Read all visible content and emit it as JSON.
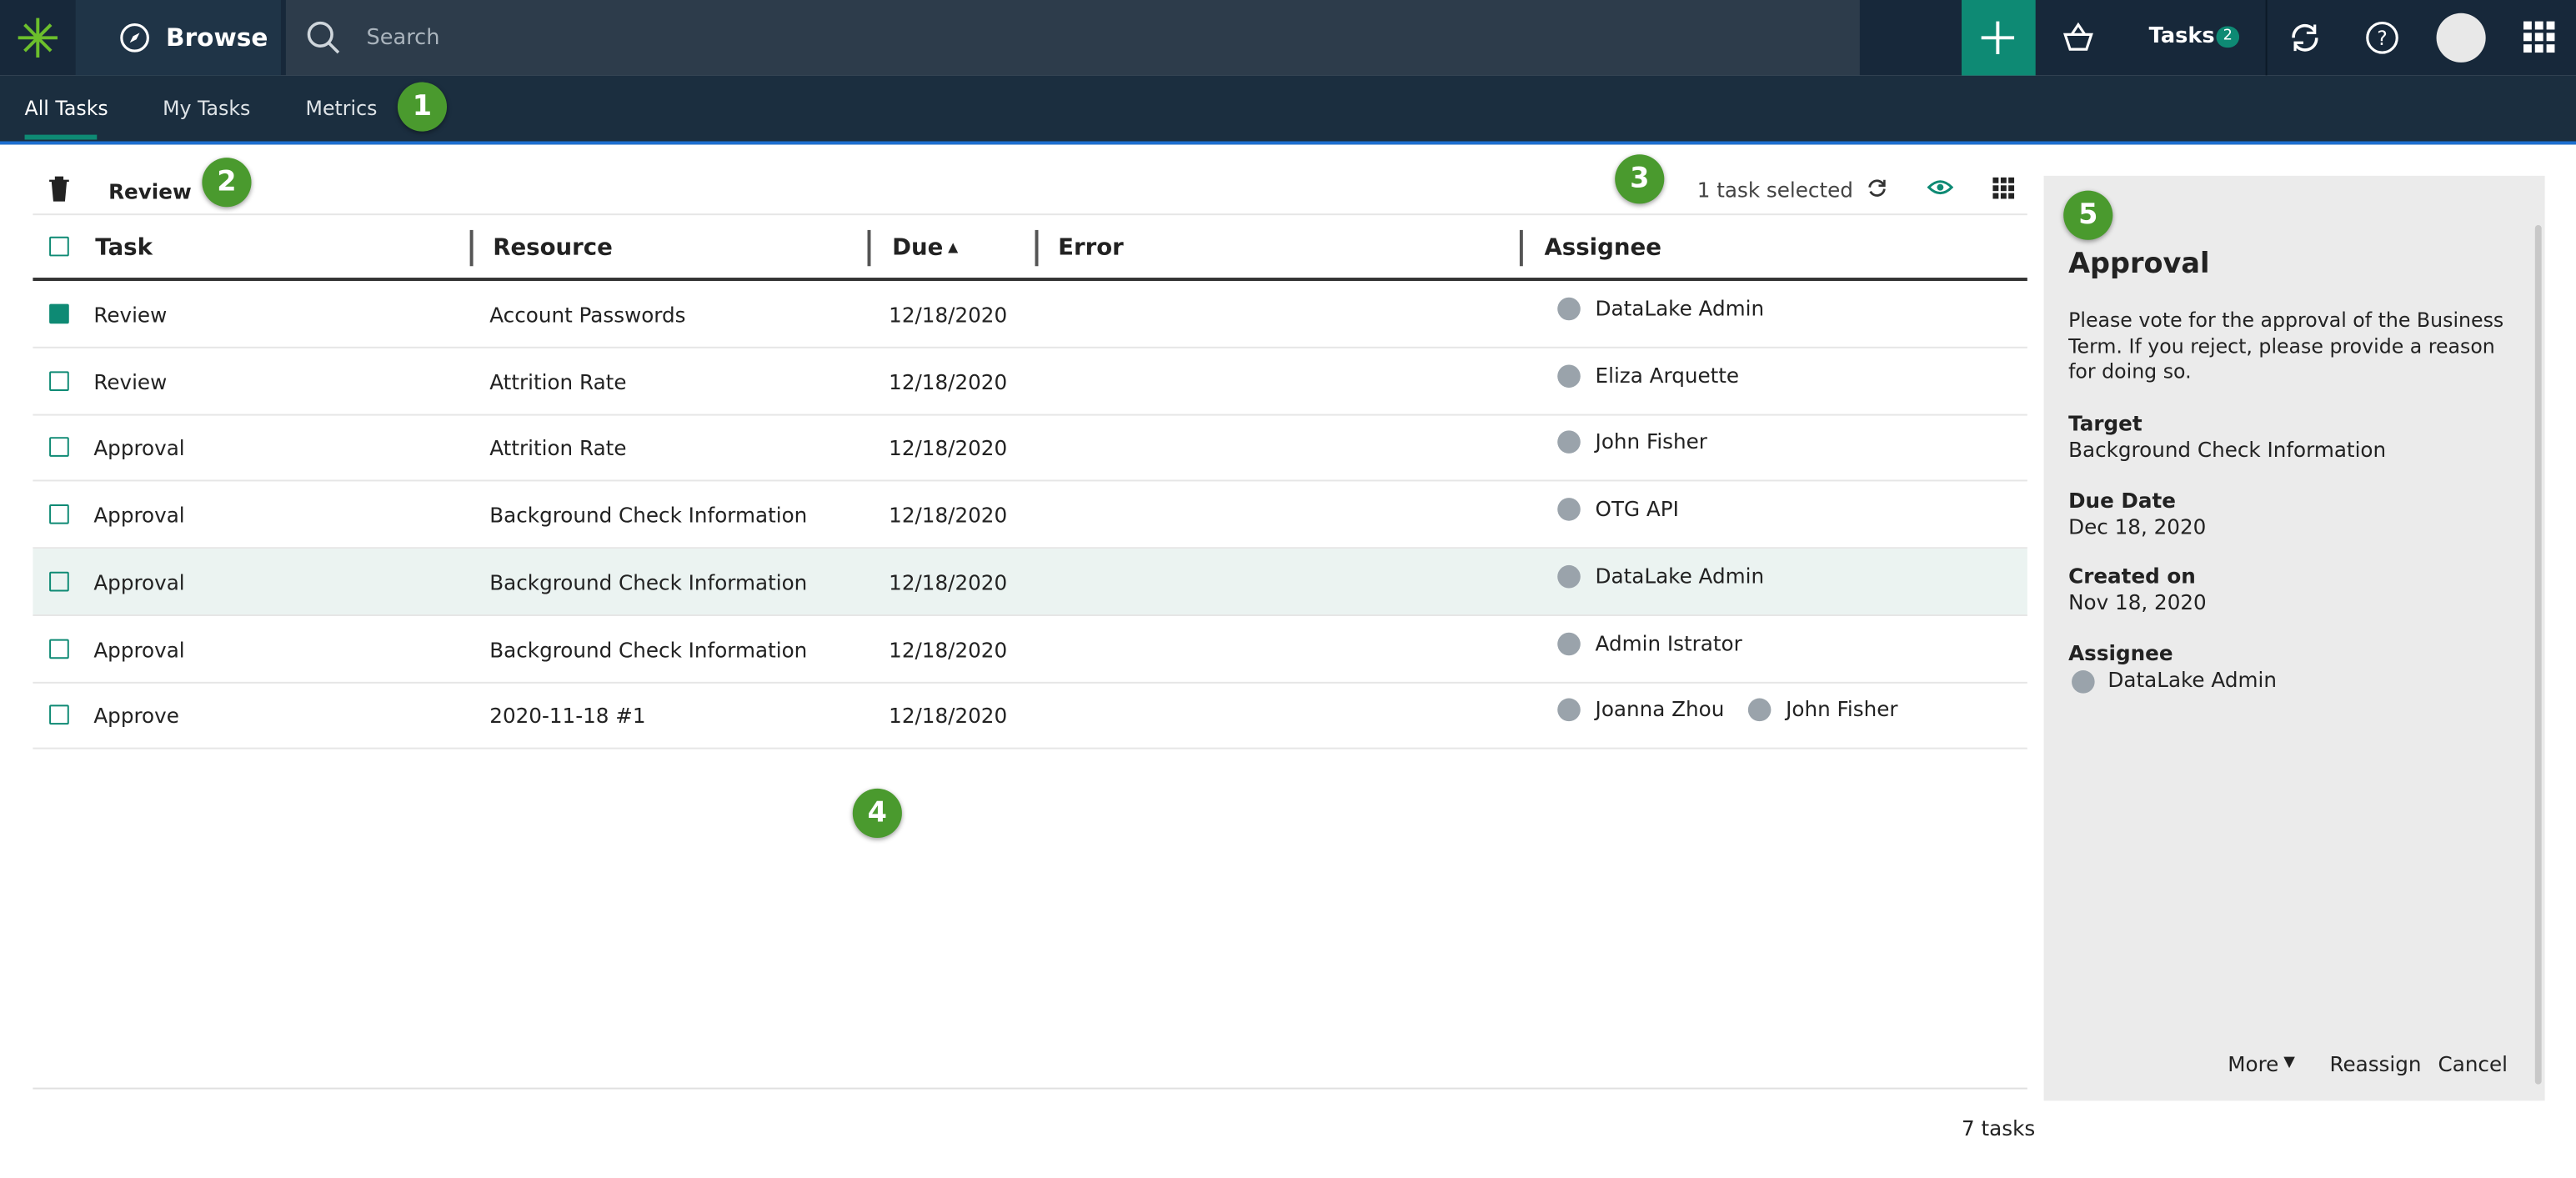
{
  "topbar": {
    "brand": "Browse",
    "search_placeholder": "Search",
    "tasks_label": "Tasks",
    "tasks_count": 2
  },
  "tabs": [
    "All Tasks",
    "My Tasks",
    "Metrics"
  ],
  "toolbar": {
    "title": "Review",
    "selection": "1 task selected"
  },
  "table": {
    "columns": [
      "Task",
      "Resource",
      "Due",
      "Error",
      "Assignee"
    ],
    "rows": [
      {
        "task": "Review",
        "resource": "Account Passwords",
        "due": "12/18/2020",
        "assignees": [
          "DataLake Admin"
        ],
        "checked": true
      },
      {
        "task": "Review",
        "resource": "Attrition Rate",
        "due": "12/18/2020",
        "assignees": [
          "Eliza Arquette"
        ]
      },
      {
        "task": "Approval",
        "resource": "Attrition Rate",
        "due": "12/18/2020",
        "assignees": [
          "John Fisher"
        ]
      },
      {
        "task": "Approval",
        "resource": "Background Check Information",
        "due": "12/18/2020",
        "assignees": [
          "OTG API"
        ]
      },
      {
        "task": "Approval",
        "resource": "Background Check Information",
        "due": "12/18/2020",
        "assignees": [
          "DataLake Admin"
        ]
      },
      {
        "task": "Approval",
        "resource": "Background Check Information",
        "due": "12/18/2020",
        "assignees": [
          "Admin Istrator"
        ]
      },
      {
        "task": "Approve",
        "resource": "2020-11-18 #1",
        "due": "12/18/2020",
        "assignees": [
          "Joanna Zhou",
          "John Fisher"
        ]
      }
    ]
  },
  "footer": {
    "count": "7 tasks"
  },
  "details": {
    "title": "Approval",
    "description": "Please vote for the approval of the Business Term. If you reject, please provide a reason for doing so.",
    "fields": [
      {
        "label": "Target",
        "value": "Background Check Information"
      },
      {
        "label": "Due Date",
        "value": "Dec 18, 2020"
      },
      {
        "label": "Created on",
        "value": "Nov 18, 2020"
      },
      {
        "label": "Assignee",
        "value": "DataLake Admin"
      }
    ],
    "actions": [
      "More",
      "Reassign",
      "Cancel"
    ]
  },
  "callouts": [
    "1",
    "2",
    "3",
    "4",
    "5"
  ]
}
